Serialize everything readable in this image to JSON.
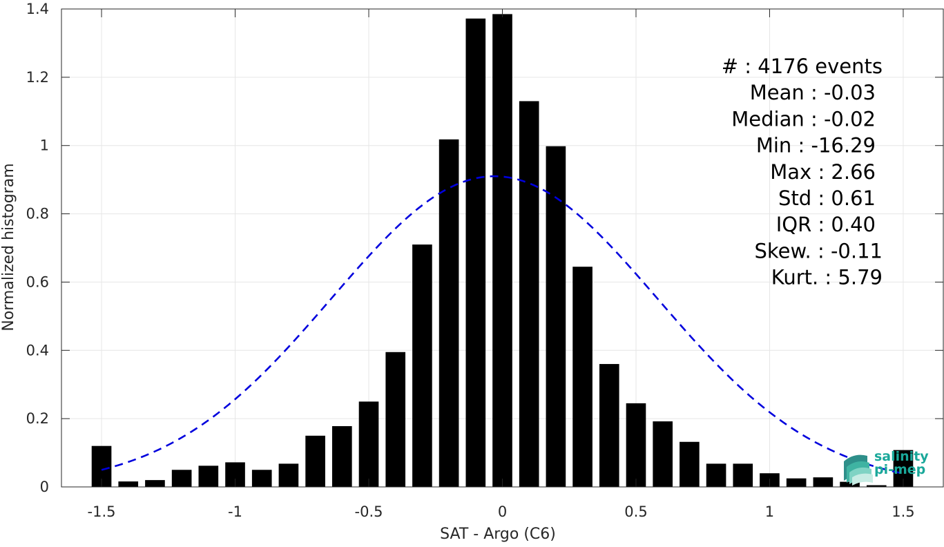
{
  "chart_data": {
    "type": "bar",
    "xlabel": "SAT - Argo (C6)",
    "ylabel": "Normalized histogram",
    "xlim": [
      -1.65,
      1.65
    ],
    "ylim": [
      0,
      1.4
    ],
    "xticks": [
      -1.5,
      -1,
      -0.5,
      0,
      0.5,
      1,
      1.5
    ],
    "xtick_labels": [
      "-1.5",
      "-1",
      "-0.5",
      "0",
      "0.5",
      "1",
      "1.5"
    ],
    "yticks": [
      0,
      0.2,
      0.4,
      0.6,
      0.8,
      1,
      1.2,
      1.4
    ],
    "ytick_labels": [
      "0",
      "0.2",
      "0.4",
      "0.6",
      "0.8",
      "1",
      "1.2",
      "1.4"
    ],
    "grid": true,
    "bar_color": "#000000",
    "bin_width": 0.1,
    "x": [
      -1.5,
      -1.4,
      -1.3,
      -1.2,
      -1.1,
      -1.0,
      -0.9,
      -0.8,
      -0.7,
      -0.6,
      -0.5,
      -0.4,
      -0.3,
      -0.2,
      -0.1,
      0.0,
      0.1,
      0.2,
      0.3,
      0.4,
      0.5,
      0.6,
      0.7,
      0.8,
      0.9,
      1.0,
      1.1,
      1.2,
      1.3,
      1.4,
      1.5
    ],
    "values": [
      0.12,
      0.016,
      0.02,
      0.05,
      0.062,
      0.072,
      0.05,
      0.068,
      0.15,
      0.178,
      0.25,
      0.395,
      0.71,
      1.018,
      1.372,
      1.385,
      1.13,
      0.998,
      0.645,
      0.36,
      0.245,
      0.192,
      0.132,
      0.068,
      0.068,
      0.04,
      0.025,
      0.028,
      0.015,
      0.005,
      0.108
    ],
    "fit_curve": {
      "type": "normal",
      "mean": -0.03,
      "std": 0.61,
      "peak": 0.91,
      "color": "#0000dd",
      "style": "dashed"
    },
    "annotations": [
      "#  : 4176 events",
      "Mean : -0.03",
      "Median : -0.02",
      "Min : -16.29",
      "Max : 2.66",
      "Std : 0.61",
      "IQR : 0.40",
      "Skew. : -0.11",
      "Kurt. : 5.79"
    ]
  },
  "logo": {
    "line1": "salinity",
    "line2": "pi-mep",
    "color": "#1aa89a"
  }
}
